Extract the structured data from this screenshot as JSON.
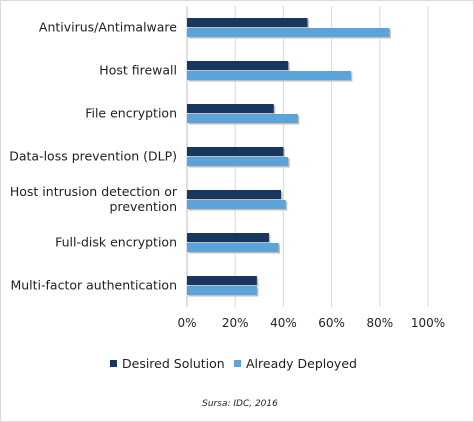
{
  "chart_data": {
    "type": "bar",
    "orientation": "horizontal",
    "categories": [
      [
        "Antivirus/Antimalware"
      ],
      [
        "Host firewall"
      ],
      [
        "File encryption"
      ],
      [
        "Data-loss prevention (DLP)"
      ],
      [
        "Host intrusion detection or",
        "prevention"
      ],
      [
        "Full-disk encryption"
      ],
      [
        "Multi-factor authentication"
      ]
    ],
    "series": [
      {
        "name": "Desired Solution",
        "color": "#17375e",
        "values": [
          50,
          42,
          36,
          40,
          39,
          34,
          29
        ]
      },
      {
        "name": "Already Deployed",
        "color": "#5ba3d9",
        "values": [
          84,
          68,
          46,
          42,
          41,
          38,
          29
        ]
      }
    ],
    "xlim": [
      0,
      100
    ],
    "xticks": [
      "0%",
      "20%",
      "40%",
      "60%",
      "80%",
      "100%"
    ],
    "grid": true,
    "legend_position": "bottom",
    "source": "Sursa: IDC, 2016"
  }
}
